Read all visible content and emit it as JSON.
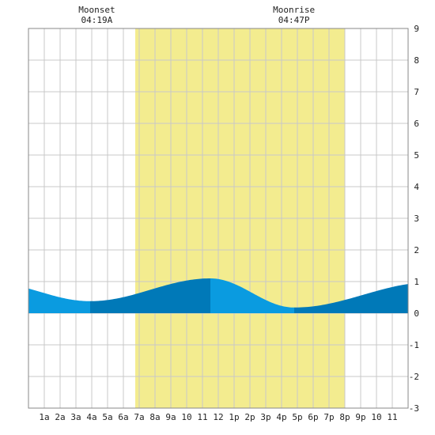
{
  "chart_data": {
    "type": "area",
    "title": "",
    "xlabel": "",
    "ylabel": "",
    "x_tick_labels": [
      "1a",
      "2a",
      "3a",
      "4a",
      "5a",
      "6a",
      "7a",
      "8a",
      "9a",
      "10",
      "11",
      "12",
      "1p",
      "2p",
      "3p",
      "4p",
      "5p",
      "6p",
      "7p",
      "8p",
      "9p",
      "10",
      "11"
    ],
    "y_tick_labels": [
      "-3",
      "-2",
      "-1",
      "0",
      "1",
      "2",
      "3",
      "4",
      "5",
      "6",
      "7",
      "8",
      "9"
    ],
    "xlim": [
      0,
      24
    ],
    "ylim": [
      -3,
      9
    ],
    "grid": true,
    "daylight": {
      "start_hour": 6.75,
      "end_hour": 20.0
    },
    "events": [
      {
        "name": "Moonset",
        "time": "04:19A",
        "hour": 4.32
      },
      {
        "name": "Moonrise",
        "time": "04:47P",
        "hour": 16.78
      }
    ],
    "tide_extremes": [
      {
        "hour": 3.9,
        "value": 0.38,
        "kind": "low"
      },
      {
        "hour": 11.5,
        "value": 1.1,
        "kind": "high"
      },
      {
        "hour": 16.8,
        "value": 0.18,
        "kind": "low"
      }
    ],
    "tide_start_value": 0.95,
    "tide_end_value": 0.95,
    "tide_end_peak_hour": 25.5,
    "colors": {
      "daylight": "#f3ec8f",
      "tide_light": "#0a9be0",
      "tide_dark": "#0079b8",
      "grid": "#c8c8c8",
      "border": "#888888"
    }
  }
}
